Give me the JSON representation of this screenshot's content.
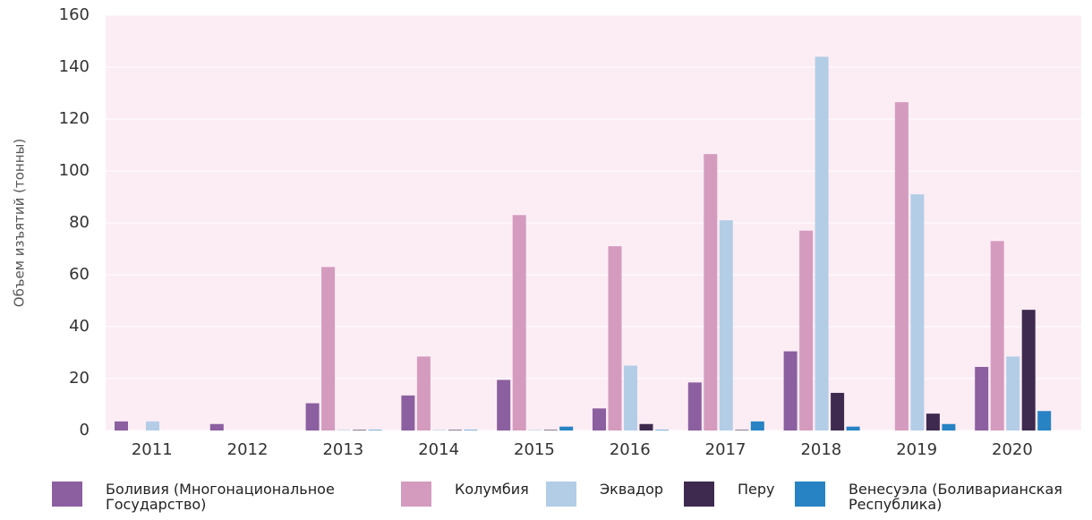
{
  "chart_data": {
    "type": "bar",
    "y_label": "Объем изъятий (тонны)",
    "categories": [
      "2011",
      "2012",
      "2013",
      "2014",
      "2015",
      "2016",
      "2017",
      "2018",
      "2019",
      "2020"
    ],
    "series": [
      {
        "name": "Боливия (Многонациональное Государство)",
        "color": "#8b5fa0",
        "values": [
          3.5,
          2.5,
          10.5,
          13.5,
          19.5,
          8.5,
          18.5,
          30.5,
          0,
          24.5
        ]
      },
      {
        "name": "Колумбия",
        "color": "#d49bbf",
        "values": [
          0,
          0,
          63,
          28.5,
          83,
          71,
          106.5,
          77,
          126.5,
          73
        ]
      },
      {
        "name": "Эквадор",
        "color": "#b3cde6",
        "values": [
          3.5,
          0,
          0.2,
          0.2,
          0.2,
          25,
          81,
          144,
          91,
          28.5
        ]
      },
      {
        "name": "Перу",
        "color": "#3f2a4f",
        "values": [
          0,
          0,
          0.2,
          0.2,
          0.2,
          2.5,
          0.2,
          14.5,
          6.5,
          46.5
        ]
      },
      {
        "name": "Венесуэла (Боливарианская Республика)",
        "color": "#2783c4",
        "values": [
          0,
          0,
          0.2,
          0.2,
          1.5,
          0.2,
          3.5,
          1.5,
          2.5,
          7.5
        ]
      }
    ],
    "ylim": [
      0,
      160
    ],
    "yticks": [
      0,
      20,
      40,
      60,
      80,
      100,
      120,
      140,
      160
    ],
    "grid": true
  }
}
